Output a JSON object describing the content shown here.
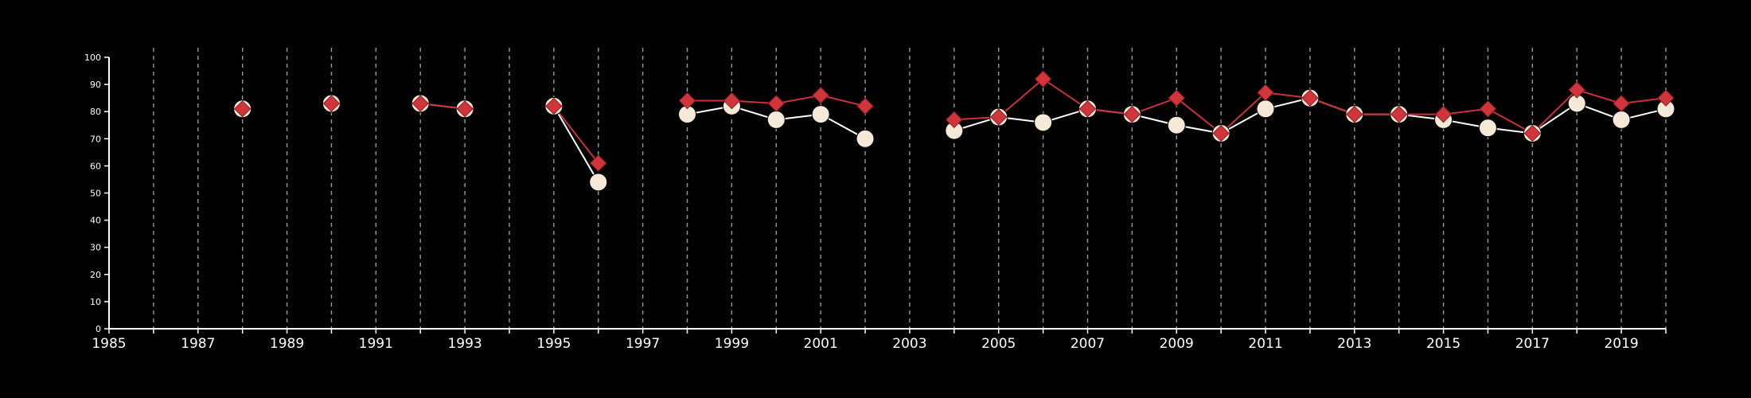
{
  "chart_data": {
    "type": "line",
    "title": "",
    "xlabel": "",
    "ylabel": "",
    "xlim": [
      1985,
      2020
    ],
    "ylim": [
      0,
      100
    ],
    "x_ticks": [
      1985,
      1987,
      1989,
      1991,
      1993,
      1995,
      1997,
      1999,
      2001,
      2003,
      2005,
      2007,
      2009,
      2011,
      2013,
      2015,
      2017,
      2019
    ],
    "y_ticks": [
      0,
      10,
      20,
      30,
      40,
      50,
      60,
      70,
      80,
      90,
      100
    ],
    "vertical_gridlines_years": [
      1986,
      1987,
      1988,
      1989,
      1990,
      1991,
      1992,
      1993,
      1994,
      1995,
      1996,
      1997,
      1998,
      1999,
      2000,
      2001,
      2002,
      2003,
      2004,
      2005,
      2006,
      2007,
      2008,
      2009,
      2010,
      2011,
      2012,
      2013,
      2014,
      2015,
      2016,
      2017,
      2018,
      2019,
      2020
    ],
    "grid": "vertical dashed",
    "legend": "none",
    "series": [
      {
        "marker": "circle",
        "color": "#ffffff",
        "fill": "#f7e9d7",
        "x": [
          1988,
          1990,
          1992,
          1993,
          1995,
          1996,
          1998,
          1999,
          2000,
          2001,
          2002,
          2004,
          2005,
          2006,
          2007,
          2008,
          2009,
          2010,
          2011,
          2012,
          2013,
          2014,
          2015,
          2016,
          2017,
          2018,
          2019,
          2020
        ],
        "values": [
          81,
          83,
          83,
          81,
          82,
          54,
          79,
          82,
          77,
          79,
          70,
          73,
          78,
          76,
          81,
          79,
          75,
          72,
          81,
          85,
          79,
          79,
          77,
          74,
          72,
          83,
          77,
          81
        ]
      },
      {
        "marker": "diamond",
        "color": "#c8323a",
        "fill": "#d0353b",
        "x": [
          1988,
          1990,
          1992,
          1993,
          1995,
          1996,
          1998,
          1999,
          2000,
          2001,
          2002,
          2004,
          2005,
          2006,
          2007,
          2008,
          2009,
          2010,
          2011,
          2012,
          2013,
          2014,
          2015,
          2016,
          2017,
          2018,
          2019,
          2020
        ],
        "values": [
          81,
          83,
          83,
          81,
          82,
          61,
          84,
          84,
          83,
          86,
          82,
          77,
          78,
          92,
          81,
          79,
          85,
          72,
          87,
          85,
          79,
          79,
          79,
          81,
          72,
          88,
          83,
          85
        ]
      }
    ]
  }
}
